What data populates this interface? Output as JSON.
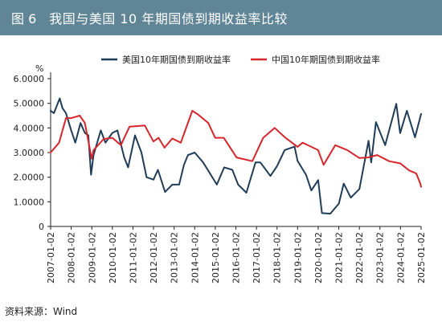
{
  "figure": {
    "number": "图 6",
    "title": "我国与美国 10 年期国债到期收益率比较"
  },
  "source_text": "资料来源：Wind",
  "chart_data": {
    "type": "line",
    "title": "我国与美国 10 年期国债到期收益率比较",
    "ylabel": "%",
    "xlabel": "",
    "ylim": [
      0,
      6
    ],
    "yticks": [
      "0",
      "1.0000",
      "2.0000",
      "3.0000",
      "4.0000",
      "5.0000",
      "6.0000"
    ],
    "xlim": [
      "2007-01-02",
      "2025-01-02"
    ],
    "xticks": [
      "2007-01-02",
      "2008-01-02",
      "2009-01-02",
      "2010-01-02",
      "2011-01-02",
      "2012-01-02",
      "2013-01-02",
      "2014-01-02",
      "2015-01-02",
      "2016-01-02",
      "2017-01-02",
      "2018-01-02",
      "2019-01-02",
      "2020-01-02",
      "2021-01-02",
      "2022-01-02",
      "2023-01-02",
      "2024-01-02",
      "2025-01-02"
    ],
    "grid": false,
    "legend_position": "top",
    "series": [
      {
        "name": "美国10年期国债到期收益率",
        "color": "#1f3d59",
        "points": [
          [
            "2007-01-02",
            4.7
          ],
          [
            "2007-03-01",
            4.6
          ],
          [
            "2007-06-12",
            5.2
          ],
          [
            "2007-08-01",
            4.8
          ],
          [
            "2007-10-01",
            4.6
          ],
          [
            "2008-01-02",
            3.9
          ],
          [
            "2008-03-15",
            3.4
          ],
          [
            "2008-06-15",
            4.2
          ],
          [
            "2008-09-01",
            3.8
          ],
          [
            "2008-11-01",
            3.7
          ],
          [
            "2008-12-20",
            2.1
          ],
          [
            "2009-02-01",
            2.9
          ],
          [
            "2009-06-10",
            3.9
          ],
          [
            "2009-09-01",
            3.4
          ],
          [
            "2010-01-02",
            3.8
          ],
          [
            "2010-04-01",
            3.9
          ],
          [
            "2010-08-01",
            2.8
          ],
          [
            "2010-10-08",
            2.4
          ],
          [
            "2011-02-08",
            3.7
          ],
          [
            "2011-06-01",
            3.0
          ],
          [
            "2011-09-01",
            2.0
          ],
          [
            "2012-01-02",
            1.9
          ],
          [
            "2012-03-20",
            2.3
          ],
          [
            "2012-07-25",
            1.4
          ],
          [
            "2012-12-01",
            1.7
          ],
          [
            "2013-04-01",
            1.7
          ],
          [
            "2013-06-25",
            2.5
          ],
          [
            "2013-09-05",
            2.9
          ],
          [
            "2014-01-02",
            3.0
          ],
          [
            "2014-06-01",
            2.6
          ],
          [
            "2014-10-15",
            2.1
          ],
          [
            "2015-01-30",
            1.7
          ],
          [
            "2015-06-10",
            2.4
          ],
          [
            "2015-11-01",
            2.3
          ],
          [
            "2016-02-11",
            1.7
          ],
          [
            "2016-07-08",
            1.37
          ],
          [
            "2016-12-15",
            2.6
          ],
          [
            "2017-03-13",
            2.6
          ],
          [
            "2017-09-07",
            2.05
          ],
          [
            "2018-01-02",
            2.45
          ],
          [
            "2018-05-17",
            3.1
          ],
          [
            "2018-11-08",
            3.24
          ],
          [
            "2019-01-02",
            2.66
          ],
          [
            "2019-06-01",
            2.1
          ],
          [
            "2019-09-03",
            1.46
          ],
          [
            "2020-01-02",
            1.88
          ],
          [
            "2020-03-09",
            0.54
          ],
          [
            "2020-08-04",
            0.52
          ],
          [
            "2021-01-04",
            0.93
          ],
          [
            "2021-03-31",
            1.74
          ],
          [
            "2021-08-03",
            1.17
          ],
          [
            "2022-01-02",
            1.52
          ],
          [
            "2022-06-14",
            3.48
          ],
          [
            "2022-08-01",
            2.6
          ],
          [
            "2022-10-24",
            4.24
          ],
          [
            "2023-04-06",
            3.3
          ],
          [
            "2023-10-19",
            4.98
          ],
          [
            "2023-12-27",
            3.79
          ],
          [
            "2024-04-25",
            4.7
          ],
          [
            "2024-09-16",
            3.62
          ],
          [
            "2025-01-02",
            4.57
          ]
        ]
      },
      {
        "name": "中国10年期国债到期收益率",
        "color": "#d6262b",
        "points": [
          [
            "2007-01-02",
            3.0
          ],
          [
            "2007-06-01",
            3.4
          ],
          [
            "2007-10-01",
            4.4
          ],
          [
            "2008-01-02",
            4.4
          ],
          [
            "2008-06-01",
            4.5
          ],
          [
            "2008-09-01",
            4.2
          ],
          [
            "2008-12-31",
            2.75
          ],
          [
            "2009-02-01",
            3.1
          ],
          [
            "2009-08-01",
            3.55
          ],
          [
            "2010-01-02",
            3.6
          ],
          [
            "2010-06-01",
            3.3
          ],
          [
            "2010-11-01",
            4.05
          ],
          [
            "2011-08-01",
            4.1
          ],
          [
            "2011-12-31",
            3.45
          ],
          [
            "2012-04-01",
            3.6
          ],
          [
            "2012-07-15",
            3.2
          ],
          [
            "2012-12-01",
            3.57
          ],
          [
            "2013-05-01",
            3.4
          ],
          [
            "2013-11-20",
            4.7
          ],
          [
            "2014-03-01",
            4.55
          ],
          [
            "2014-09-01",
            4.2
          ],
          [
            "2014-12-31",
            3.6
          ],
          [
            "2015-06-01",
            3.6
          ],
          [
            "2016-01-15",
            2.8
          ],
          [
            "2016-10-21",
            2.65
          ],
          [
            "2017-05-01",
            3.6
          ],
          [
            "2017-11-22",
            4.0
          ],
          [
            "2018-06-01",
            3.6
          ],
          [
            "2018-12-31",
            3.23
          ],
          [
            "2019-04-01",
            3.4
          ],
          [
            "2019-12-31",
            3.1
          ],
          [
            "2020-04-08",
            2.5
          ],
          [
            "2020-11-01",
            3.3
          ],
          [
            "2021-06-01",
            3.1
          ],
          [
            "2021-12-31",
            2.78
          ],
          [
            "2022-06-01",
            2.8
          ],
          [
            "2022-11-15",
            2.9
          ],
          [
            "2023-06-13",
            2.65
          ],
          [
            "2023-12-31",
            2.56
          ],
          [
            "2024-06-01",
            2.28
          ],
          [
            "2024-10-08",
            2.15
          ],
          [
            "2024-12-20",
            1.73
          ],
          [
            "2025-01-02",
            1.61
          ]
        ]
      }
    ]
  }
}
